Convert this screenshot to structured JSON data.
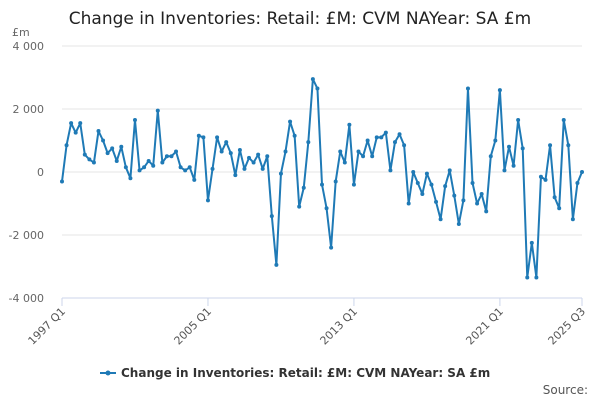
{
  "chart_data": {
    "type": "line",
    "title": "Change in Inventories: Retail: £M: CVM NAYear: SA £m",
    "unit_label": "£m",
    "source_label": "Source:",
    "x_start": "1997 Q1",
    "x_end": "2025 Q3",
    "x_tick_labels": [
      "1997 Q1",
      "2005 Q1",
      "2013 Q1",
      "2021 Q1",
      "2025 Q3"
    ],
    "y_ticks": [
      -4000,
      -2000,
      0,
      2000,
      4000
    ],
    "y_tick_labels": [
      "-4 000",
      "-2 000",
      "0",
      "2 000",
      "4 000"
    ],
    "ylim": [
      -4000,
      4000
    ],
    "grid": true,
    "legend_position": "bottom",
    "series": [
      {
        "name": "Change in Inventories: Retail: £M: CVM NAYear: SA £m",
        "color": "#1f7ab6",
        "values": [
          -300,
          850,
          1550,
          1250,
          1550,
          550,
          400,
          300,
          1300,
          1000,
          600,
          750,
          350,
          800,
          150,
          -200,
          1650,
          50,
          150,
          350,
          200,
          1950,
          300,
          500,
          500,
          650,
          150,
          50,
          150,
          -250,
          1150,
          1100,
          -900,
          100,
          1100,
          650,
          950,
          600,
          -100,
          700,
          100,
          450,
          300,
          550,
          100,
          500,
          -1400,
          -2950,
          -50,
          650,
          1600,
          1150,
          -1100,
          -500,
          950,
          2950,
          2650,
          -400,
          -1150,
          -2400,
          -300,
          650,
          300,
          1500,
          -400,
          650,
          500,
          1000,
          500,
          1100,
          1100,
          1250,
          50,
          950,
          1200,
          850,
          -1000,
          0,
          -350,
          -700,
          -50,
          -400,
          -950,
          -1500,
          -450,
          50,
          -750,
          -1650,
          -900,
          2650,
          -350,
          -1000,
          -700,
          -1250,
          500,
          1000,
          2600,
          50,
          800,
          200,
          1650,
          750,
          -3350,
          -2250,
          -3350,
          -150,
          -250,
          850,
          -800,
          -1150,
          1650,
          850,
          -1500,
          -350,
          0
        ]
      }
    ]
  }
}
